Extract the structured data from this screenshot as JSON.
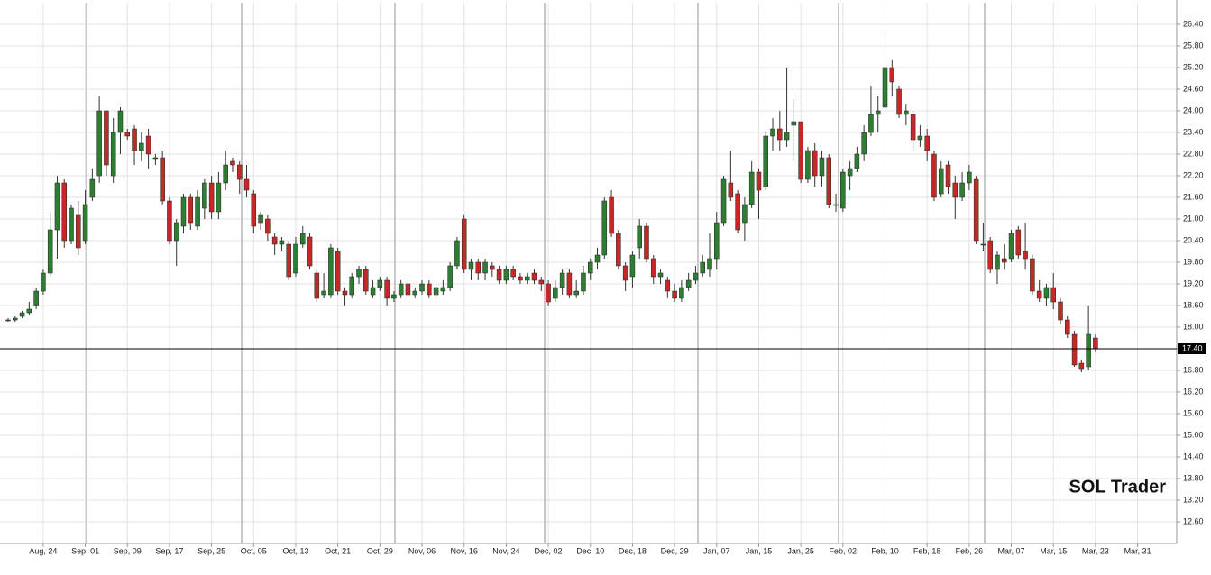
{
  "chart_data": {
    "type": "candlestick",
    "watermark": "SOL Trader",
    "up_color": "#2e7d32",
    "down_color": "#c62828",
    "wick_color": "#333333",
    "grid": true,
    "last": {
      "value": 17.4,
      "label": "17.40"
    },
    "ylim": [
      12.0,
      27.0
    ],
    "yticks": [
      {
        "value": 12.6,
        "label": "12.60"
      },
      {
        "value": 13.2,
        "label": "13.20"
      },
      {
        "value": 13.8,
        "label": "13.80"
      },
      {
        "value": 14.4,
        "label": "14.40"
      },
      {
        "value": 15.0,
        "label": "15.00"
      },
      {
        "value": 15.6,
        "label": "15.60"
      },
      {
        "value": 16.2,
        "label": "16.20"
      },
      {
        "value": 16.8,
        "label": "16.80"
      },
      {
        "value": 17.4,
        "label": "17.40"
      },
      {
        "value": 18.0,
        "label": "18.00"
      },
      {
        "value": 18.6,
        "label": "18.60"
      },
      {
        "value": 19.2,
        "label": "19.20"
      },
      {
        "value": 19.8,
        "label": "19.80"
      },
      {
        "value": 20.4,
        "label": "20.40"
      },
      {
        "value": 21.0,
        "label": "21.00"
      },
      {
        "value": 21.6,
        "label": "21.60"
      },
      {
        "value": 22.2,
        "label": "22.20"
      },
      {
        "value": 22.8,
        "label": "22.80"
      },
      {
        "value": 23.4,
        "label": "23.40"
      },
      {
        "value": 24.0,
        "label": "24.00"
      },
      {
        "value": 24.6,
        "label": "24.60"
      },
      {
        "value": 25.2,
        "label": "25.20"
      },
      {
        "value": 25.8,
        "label": "25.80"
      },
      {
        "value": 26.4,
        "label": "26.40"
      }
    ],
    "categories": [
      null,
      null,
      null,
      null,
      null,
      "Aug, 24",
      null,
      null,
      null,
      null,
      null,
      "Sep, 01",
      null,
      null,
      null,
      null,
      null,
      "Sep, 09",
      null,
      null,
      null,
      null,
      null,
      "Sep, 17",
      null,
      null,
      null,
      null,
      null,
      "Sep, 25",
      null,
      null,
      null,
      null,
      null,
      "Oct, 05",
      null,
      null,
      null,
      null,
      null,
      "Oct, 13",
      null,
      null,
      null,
      null,
      null,
      "Oct, 21",
      null,
      null,
      null,
      null,
      null,
      "Oct, 29",
      null,
      null,
      null,
      null,
      null,
      "Nov, 06",
      null,
      null,
      null,
      null,
      null,
      "Nov, 16",
      null,
      null,
      null,
      null,
      null,
      "Nov, 24",
      null,
      null,
      null,
      null,
      null,
      "Dec, 02",
      null,
      null,
      null,
      null,
      null,
      "Dec, 10",
      null,
      null,
      null,
      null,
      null,
      "Dec, 18",
      null,
      null,
      null,
      null,
      null,
      "Dec, 29",
      null,
      null,
      null,
      null,
      null,
      "Jan, 07",
      null,
      null,
      null,
      null,
      null,
      "Jan, 15",
      null,
      null,
      null,
      null,
      null,
      "Jan, 25",
      null,
      null,
      null,
      null,
      null,
      "Feb, 02",
      null,
      null,
      null,
      null,
      null,
      "Feb, 10",
      null,
      null,
      null,
      null,
      null,
      "Feb, 18",
      null,
      null,
      null,
      null,
      null,
      "Feb, 26",
      null,
      null,
      null,
      null,
      null,
      "Mar, 07",
      null,
      null,
      null,
      null,
      null,
      "Mar, 15",
      null,
      null,
      null,
      null,
      null,
      "Mar, 23",
      null,
      null,
      null,
      null,
      null,
      "Mar, 31"
    ],
    "open": [
      18.2,
      18.2,
      18.3,
      18.4,
      18.6,
      19.0,
      19.5,
      20.7,
      22.0,
      20.4,
      21.1,
      20.4,
      21.6,
      22.2,
      24.0,
      22.2,
      23.4,
      23.4,
      23.5,
      22.9,
      23.3,
      22.7,
      22.7,
      21.5,
      20.4,
      20.8,
      21.6,
      20.8,
      21.3,
      22.0,
      21.2,
      22.0,
      22.6,
      22.5,
      22.1,
      21.7,
      20.9,
      21.0,
      20.5,
      20.3,
      20.3,
      19.5,
      20.3,
      20.5,
      19.5,
      18.9,
      18.9,
      20.1,
      19.0,
      18.9,
      19.4,
      19.6,
      18.9,
      19.1,
      19.3,
      18.8,
      18.9,
      19.2,
      18.9,
      19.0,
      19.2,
      18.9,
      19.0,
      19.1,
      19.7,
      21.0,
      19.6,
      19.8,
      19.5,
      19.7,
      19.6,
      19.3,
      19.6,
      19.4,
      19.3,
      19.5,
      19.3,
      19.2,
      18.8,
      19.1,
      19.5,
      18.9,
      19.0,
      19.5,
      19.8,
      20.0,
      21.6,
      20.6,
      19.7,
      19.4,
      20.2,
      20.8,
      19.9,
      19.4,
      19.3,
      19.0,
      18.8,
      19.1,
      19.3,
      19.5,
      19.6,
      19.9,
      20.9,
      22.0,
      21.7,
      20.9,
      21.4,
      22.3,
      21.9,
      23.3,
      23.5,
      23.2,
      23.6,
      23.7,
      22.1,
      22.9,
      22.2,
      22.7,
      21.4,
      21.3,
      22.2,
      22.4,
      22.8,
      23.4,
      23.9,
      24.1,
      25.2,
      24.6,
      23.9,
      23.9,
      23.2,
      23.3,
      22.8,
      21.7,
      22.5,
      22.0,
      21.6,
      22.0,
      22.1,
      20.3,
      20.4,
      19.6,
      19.9,
      19.9,
      20.7,
      20.1,
      19.9,
      19.0,
      18.8,
      19.1,
      18.7,
      18.2,
      17.8,
      17.0,
      16.9,
      17.7,
      null,
      null,
      null,
      null,
      null,
      null
    ],
    "high": [
      18.25,
      18.3,
      18.45,
      18.7,
      19.1,
      19.6,
      21.2,
      22.2,
      22.1,
      21.4,
      21.5,
      21.8,
      22.4,
      24.4,
      24.0,
      23.8,
      24.1,
      23.5,
      23.6,
      23.4,
      23.5,
      22.8,
      22.9,
      21.6,
      21.0,
      21.7,
      21.7,
      21.8,
      22.1,
      22.2,
      22.3,
      22.9,
      22.7,
      22.6,
      22.5,
      21.8,
      21.2,
      21.1,
      20.6,
      20.5,
      20.4,
      20.5,
      20.8,
      20.6,
      19.6,
      19.5,
      20.3,
      20.2,
      19.1,
      19.5,
      19.7,
      19.7,
      19.3,
      19.4,
      19.4,
      19.0,
      19.3,
      19.3,
      19.1,
      19.3,
      19.3,
      19.2,
      19.3,
      19.8,
      20.5,
      21.1,
      19.9,
      19.9,
      19.9,
      19.8,
      19.7,
      19.7,
      19.7,
      19.5,
      19.5,
      19.6,
      19.4,
      19.3,
      19.3,
      19.6,
      19.6,
      19.3,
      19.7,
      19.9,
      20.2,
      21.6,
      21.8,
      20.7,
      19.8,
      20.1,
      21.0,
      20.9,
      20.0,
      19.6,
      19.4,
      19.2,
      19.3,
      19.5,
      19.7,
      20.0,
      20.6,
      21.2,
      22.2,
      22.9,
      21.8,
      21.6,
      22.6,
      22.4,
      23.4,
      23.8,
      24.0,
      25.2,
      24.3,
      23.7,
      23.0,
      23.1,
      22.9,
      22.8,
      21.7,
      22.4,
      22.6,
      23.0,
      23.6,
      24.7,
      24.4,
      26.1,
      25.4,
      24.7,
      24.2,
      24.0,
      23.6,
      23.5,
      22.9,
      22.6,
      22.6,
      22.2,
      22.3,
      22.5,
      22.2,
      20.9,
      20.5,
      20.1,
      20.3,
      20.7,
      20.8,
      20.9,
      20.0,
      19.3,
      19.2,
      19.5,
      18.8,
      18.3,
      17.9,
      17.1,
      18.6,
      17.8,
      null,
      null,
      null,
      null,
      null,
      null
    ],
    "low": [
      18.15,
      18.15,
      18.25,
      18.35,
      18.5,
      18.9,
      19.4,
      19.9,
      20.2,
      20.3,
      20.0,
      20.3,
      21.5,
      22.0,
      22.2,
      22.0,
      22.8,
      23.2,
      22.5,
      22.6,
      22.4,
      22.5,
      21.4,
      20.3,
      19.7,
      20.6,
      20.7,
      20.7,
      21.0,
      21.0,
      21.0,
      21.8,
      22.3,
      21.7,
      21.6,
      20.6,
      20.7,
      20.4,
      20.0,
      20.1,
      19.3,
      19.4,
      20.2,
      19.6,
      18.7,
      18.8,
      18.8,
      18.9,
      18.6,
      18.8,
      19.2,
      18.9,
      18.8,
      19.0,
      18.6,
      18.7,
      18.8,
      18.8,
      18.8,
      18.9,
      18.8,
      18.8,
      18.9,
      19.0,
      19.6,
      19.5,
      19.3,
      19.3,
      19.3,
      19.4,
      19.2,
      19.2,
      19.3,
      19.2,
      19.2,
      19.2,
      19.0,
      18.6,
      18.7,
      18.9,
      18.8,
      18.8,
      18.9,
      19.3,
      19.6,
      19.9,
      20.5,
      19.6,
      19.0,
      19.1,
      19.9,
      19.8,
      19.2,
      19.2,
      18.8,
      18.7,
      18.7,
      19.0,
      19.2,
      19.4,
      19.4,
      19.6,
      20.8,
      21.5,
      20.6,
      20.4,
      21.3,
      21.0,
      21.8,
      22.9,
      22.9,
      23.0,
      22.6,
      22.0,
      22.0,
      21.9,
      21.9,
      21.3,
      21.2,
      21.2,
      21.8,
      22.3,
      22.6,
      23.3,
      23.4,
      23.9,
      24.4,
      23.8,
      23.6,
      22.9,
      23.0,
      22.6,
      21.5,
      21.6,
      21.7,
      21.0,
      21.5,
      21.8,
      20.3,
      20.1,
      19.5,
      19.2,
      19.6,
      19.8,
      19.9,
      19.6,
      18.9,
      18.7,
      18.6,
      18.5,
      18.1,
      17.7,
      16.9,
      16.75,
      16.8,
      17.3,
      null,
      null,
      null,
      null,
      null,
      null
    ],
    "close": [
      18.2,
      18.25,
      18.4,
      18.5,
      19.0,
      19.5,
      20.7,
      22.0,
      20.4,
      21.3,
      20.2,
      21.4,
      22.1,
      24.0,
      22.5,
      23.4,
      24.0,
      23.3,
      22.9,
      23.1,
      22.8,
      22.7,
      21.5,
      20.4,
      20.9,
      21.6,
      20.9,
      21.6,
      22.0,
      21.2,
      22.0,
      22.5,
      22.5,
      22.1,
      21.8,
      20.8,
      21.1,
      20.6,
      20.3,
      20.4,
      19.4,
      20.3,
      20.6,
      19.7,
      18.8,
      19.0,
      20.2,
      19.0,
      18.9,
      19.4,
      19.6,
      19.0,
      19.1,
      19.3,
      18.8,
      18.9,
      19.2,
      18.9,
      19.0,
      19.2,
      18.9,
      19.1,
      19.1,
      19.7,
      20.4,
      19.6,
      19.8,
      19.5,
      19.8,
      19.6,
      19.3,
      19.6,
      19.4,
      19.3,
      19.4,
      19.3,
      19.2,
      18.7,
      19.1,
      19.5,
      18.9,
      19.0,
      19.5,
      19.8,
      20.0,
      21.5,
      20.6,
      19.7,
      19.3,
      20.0,
      20.8,
      19.9,
      19.4,
      19.5,
      19.0,
      18.8,
      19.1,
      19.3,
      19.5,
      19.8,
      19.9,
      20.9,
      22.1,
      21.6,
      20.7,
      21.4,
      22.3,
      21.8,
      23.3,
      23.5,
      23.2,
      23.4,
      23.7,
      22.1,
      22.9,
      22.2,
      22.7,
      21.4,
      21.4,
      22.3,
      22.4,
      22.8,
      23.4,
      23.9,
      24.0,
      25.2,
      24.8,
      23.9,
      24.0,
      23.2,
      23.3,
      22.9,
      21.6,
      22.4,
      21.9,
      21.6,
      22.0,
      22.3,
      20.4,
      20.3,
      19.6,
      20.0,
      19.8,
      20.6,
      20.0,
      19.9,
      19.0,
      18.8,
      19.1,
      18.7,
      18.2,
      17.8,
      16.95,
      16.85,
      17.8,
      17.4,
      null,
      null,
      null,
      null,
      null,
      null
    ]
  }
}
